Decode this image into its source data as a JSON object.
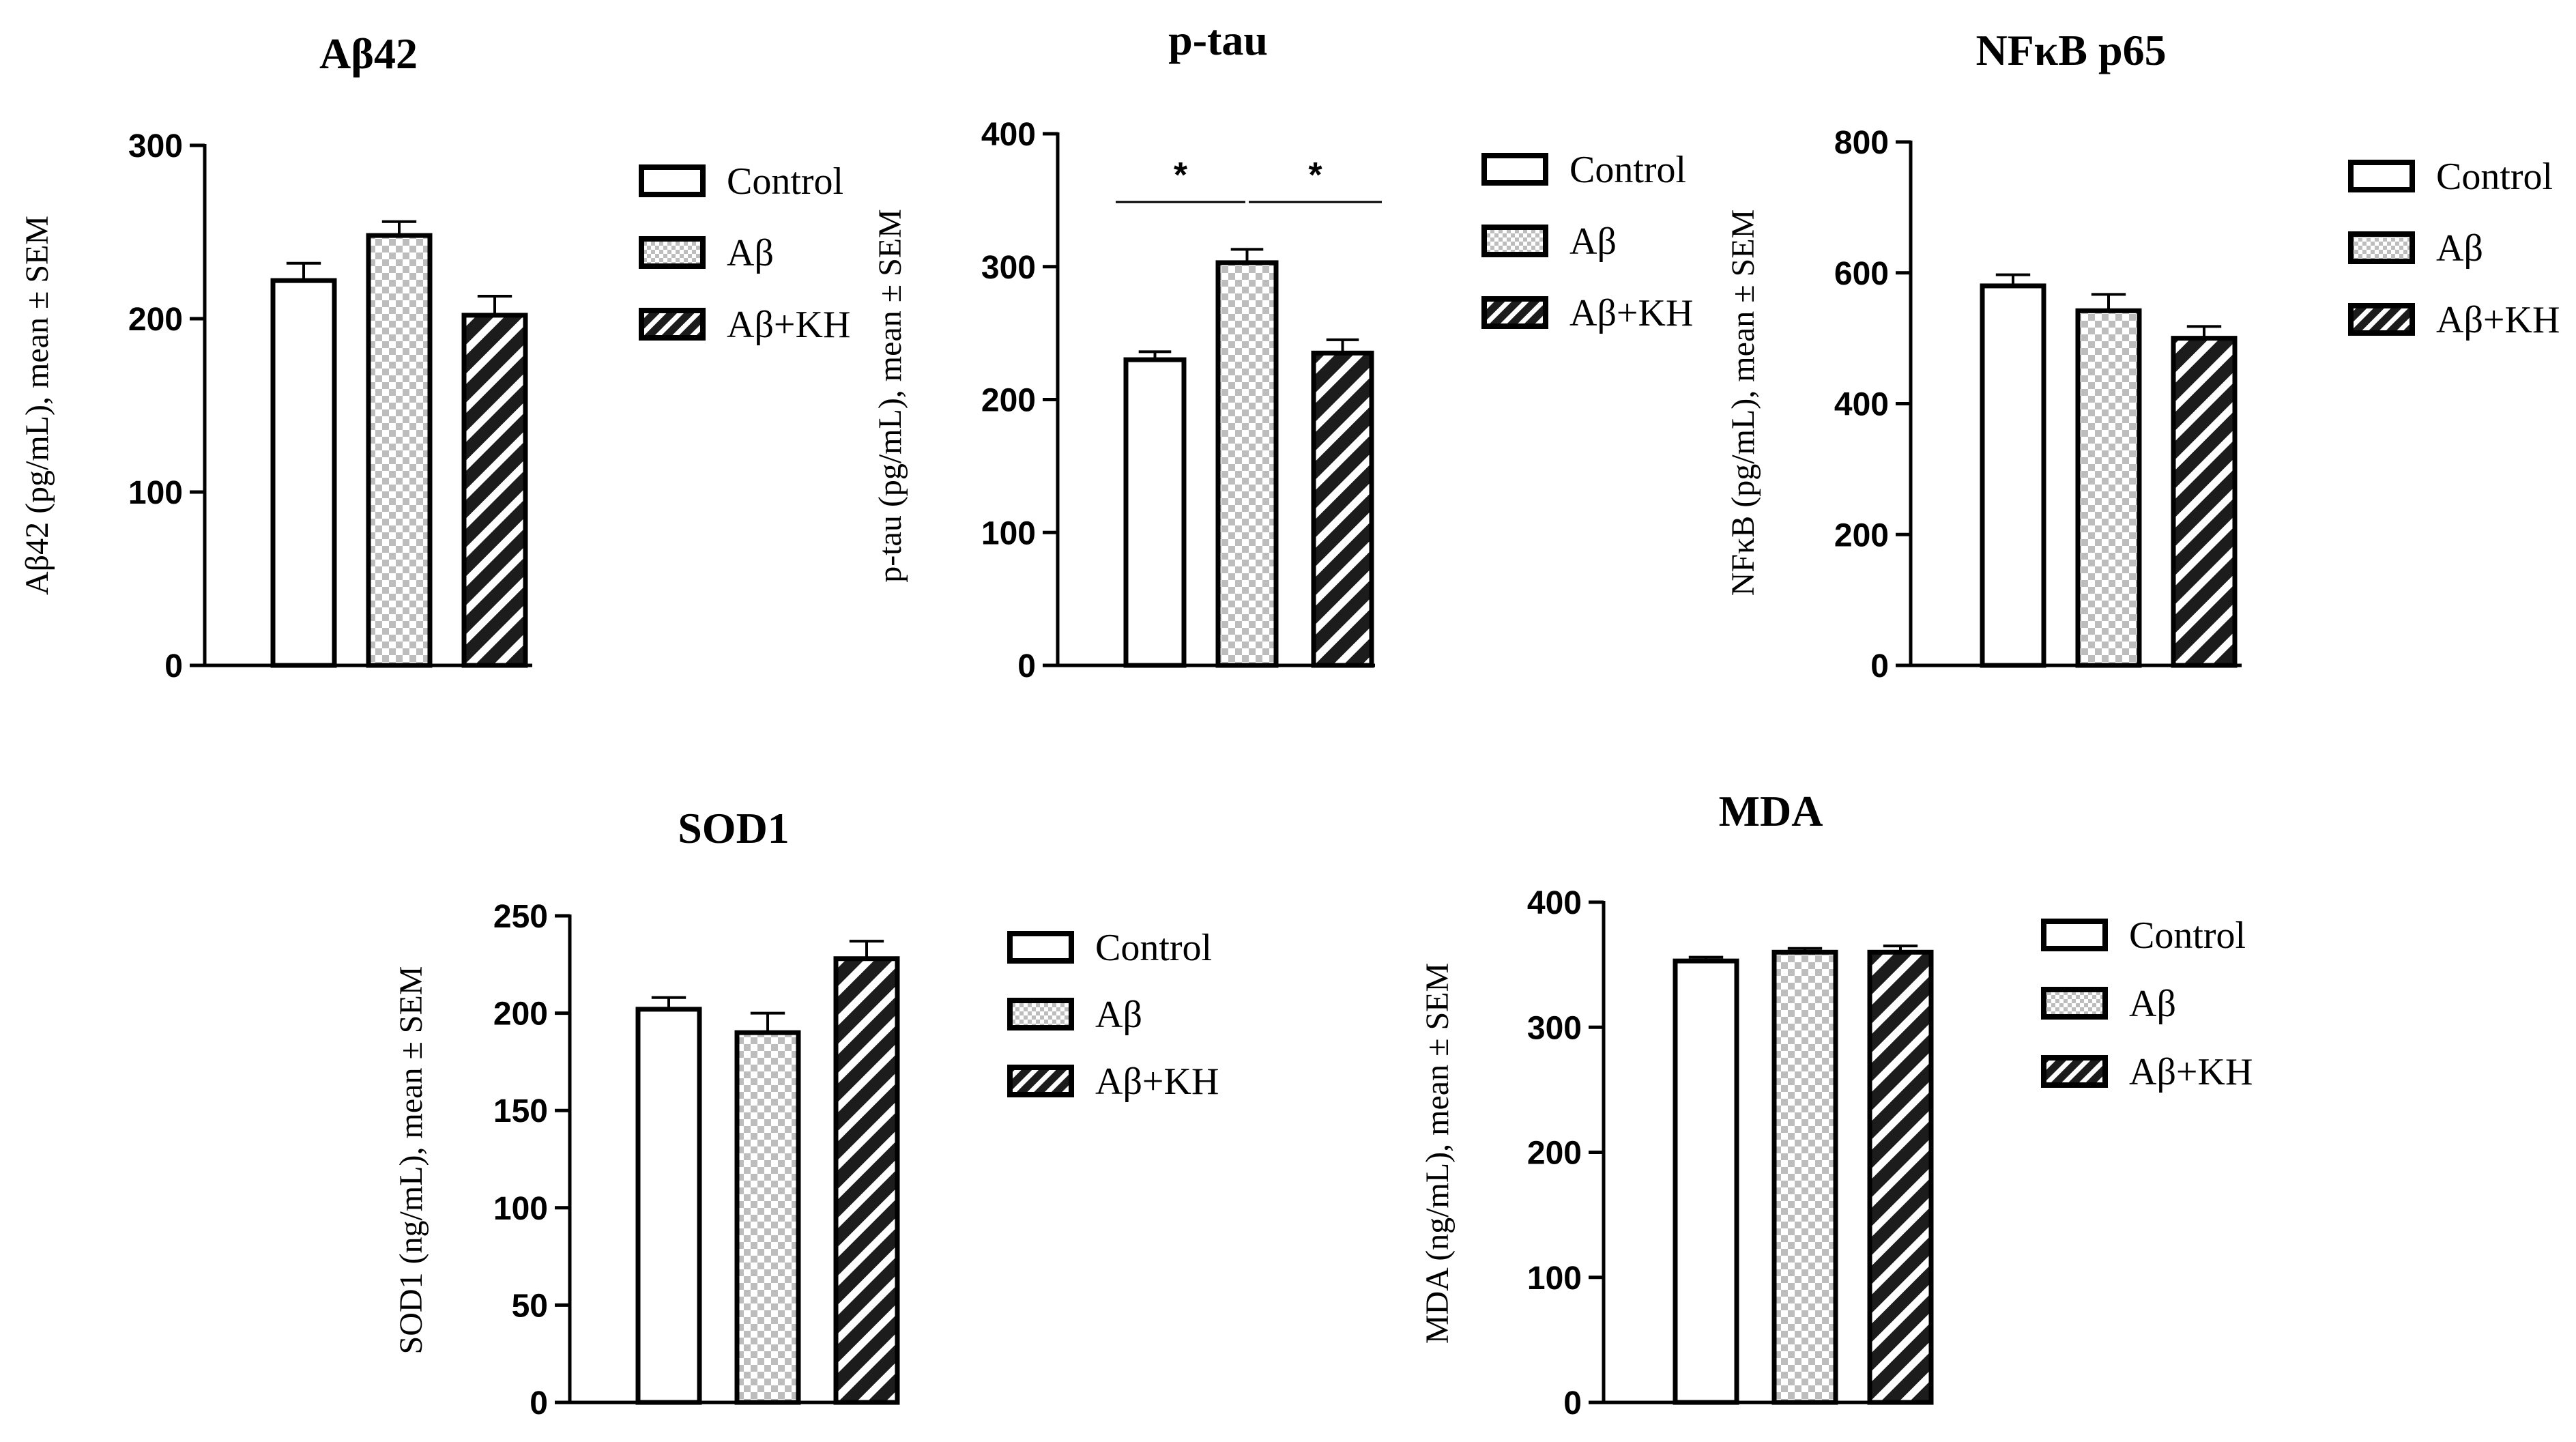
{
  "chart_data": [
    {
      "type": "bar",
      "title": "Aβ42",
      "ylabel": "Aβ42 (pg/mL), mean ± SEM",
      "xlabel": "",
      "ylim": [
        0,
        300
      ],
      "yticks": [
        0,
        100,
        200,
        300
      ],
      "categories": [
        "Control",
        "Aβ",
        "Aβ+KH"
      ],
      "values": [
        222,
        248,
        202
      ],
      "errors": [
        10,
        8,
        11
      ],
      "legend": [
        "Control",
        "Aβ",
        "Aβ+KH"
      ],
      "significance": []
    },
    {
      "type": "bar",
      "title": "p-tau",
      "ylabel": "p-tau (pg/mL), mean ± SEM",
      "xlabel": "",
      "ylim": [
        0,
        400
      ],
      "yticks": [
        0,
        100,
        200,
        300,
        400
      ],
      "categories": [
        "Control",
        "Aβ",
        "Aβ+KH"
      ],
      "values": [
        230,
        303,
        235
      ],
      "errors": [
        6,
        10,
        10
      ],
      "legend": [
        "Control",
        "Aβ",
        "Aβ+KH"
      ],
      "significance": [
        {
          "from": 0,
          "to": 1,
          "label": "*"
        },
        {
          "from": 1,
          "to": 2,
          "label": "*"
        }
      ]
    },
    {
      "type": "bar",
      "title": "NFκB  p65",
      "ylabel": "NFκB (pg/mL), mean ± SEM",
      "xlabel": "",
      "ylim": [
        0,
        800
      ],
      "yticks": [
        0,
        200,
        400,
        600,
        800
      ],
      "categories": [
        "Control",
        "Aβ",
        "Aβ+KH"
      ],
      "values": [
        580,
        542,
        500
      ],
      "errors": [
        17,
        25,
        18
      ],
      "legend": [
        "Control",
        "Aβ",
        "Aβ+KH"
      ],
      "significance": []
    },
    {
      "type": "bar",
      "title": "SOD1",
      "ylabel": "SOD1 (ng/mL), mean ± SEM",
      "xlabel": "",
      "ylim": [
        0,
        250
      ],
      "yticks": [
        0,
        50,
        100,
        150,
        200,
        250
      ],
      "categories": [
        "Control",
        "Aβ",
        "Aβ+KH"
      ],
      "values": [
        202,
        190,
        228
      ],
      "errors": [
        6,
        10,
        9
      ],
      "legend": [
        "Control",
        "Aβ",
        "Aβ+KH"
      ],
      "significance": []
    },
    {
      "type": "bar",
      "title": "MDA",
      "ylabel": "MDA (ng/mL), mean ± SEM",
      "xlabel": "",
      "ylim": [
        0,
        400
      ],
      "yticks": [
        0,
        100,
        200,
        300,
        400
      ],
      "categories": [
        "Control",
        "Aβ",
        "Aβ+KH"
      ],
      "values": [
        353,
        360,
        360
      ],
      "errors": [
        3,
        3,
        5
      ],
      "legend": [
        "Control",
        "Aβ",
        "Aβ+KH"
      ],
      "significance": []
    }
  ],
  "colors": {
    "ink": "#000000",
    "grid_fill": "#bdbdbd",
    "paper": "#ffffff"
  },
  "patterns": [
    "open",
    "checkered",
    "hatched"
  ]
}
